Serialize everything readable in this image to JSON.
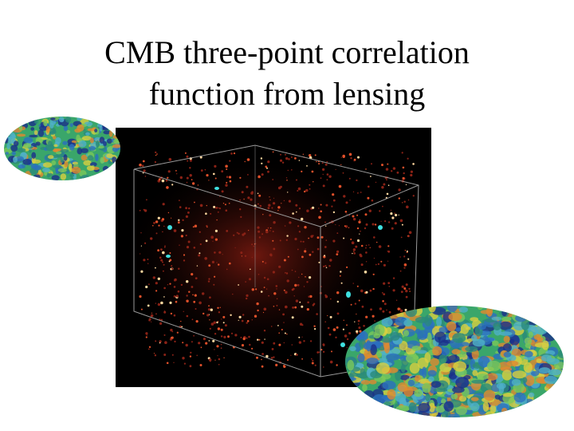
{
  "slide": {
    "title_lines": [
      "CMB three-point correlation",
      "function from lensing"
    ]
  }
}
